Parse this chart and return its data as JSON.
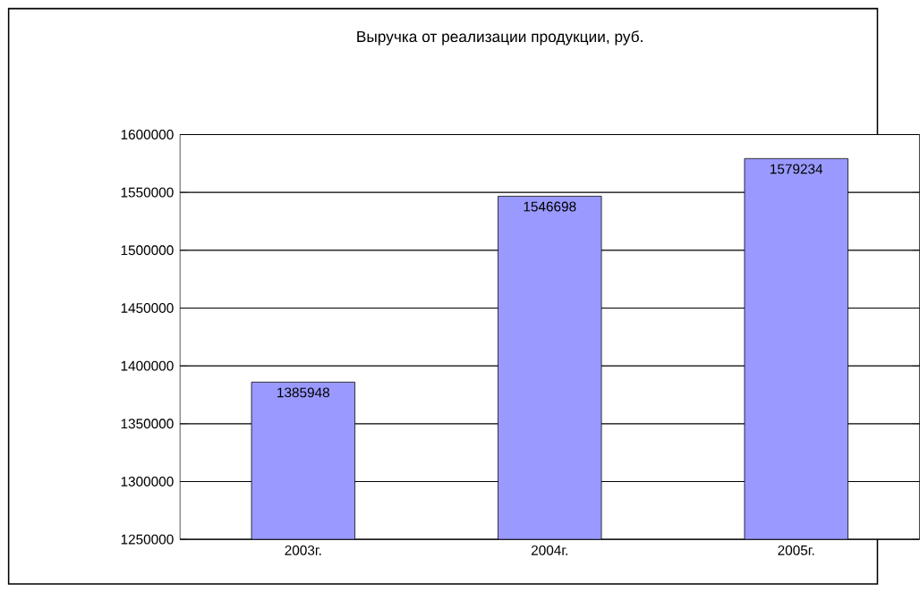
{
  "chart_data": {
    "type": "bar",
    "title": "Выручка от реализации продукции, руб.",
    "categories": [
      "2003г.",
      "2004г.",
      "2005г."
    ],
    "values": [
      1385948,
      1546698,
      1579234
    ],
    "color": "#9999ff",
    "data_labels": true,
    "grid": "y",
    "ylim": [
      1250000,
      1600000
    ],
    "yticks": [
      1250000,
      1300000,
      1350000,
      1400000,
      1450000,
      1500000,
      1550000,
      1600000
    ]
  }
}
